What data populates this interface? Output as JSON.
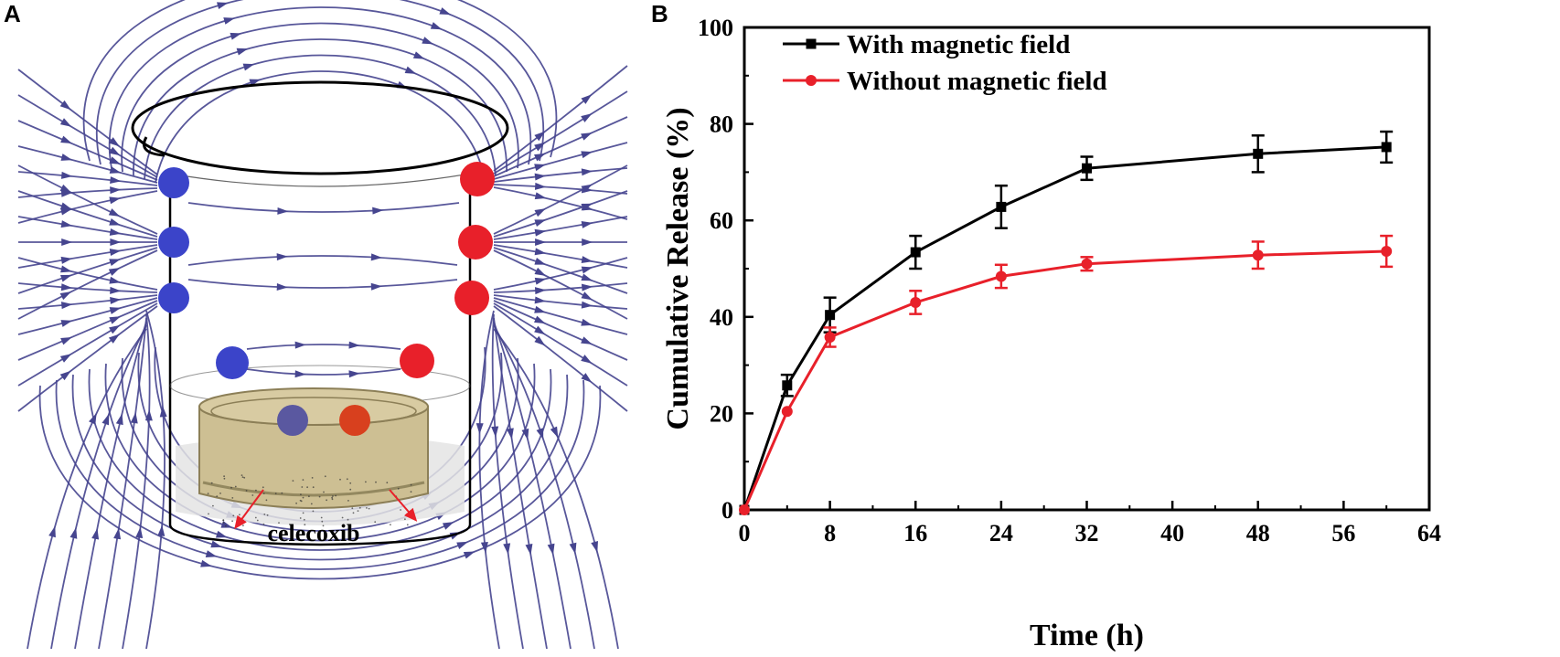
{
  "panel_a": {
    "letter": "A",
    "label": "celecoxib",
    "colors": {
      "field_line": "#46458f",
      "north_pole": "#3b44c9",
      "south_pole": "#e8202a",
      "sample": "#cdbf93"
    }
  },
  "panel_b": {
    "letter": "B"
  },
  "chart_data": {
    "type": "line",
    "xlabel": "Time (h)",
    "ylabel": "Cumulative Release (%)",
    "xlim": [
      0,
      64
    ],
    "ylim": [
      0,
      100
    ],
    "xticks": [
      0,
      8,
      16,
      24,
      32,
      40,
      48,
      56,
      64
    ],
    "yticks": [
      0,
      20,
      40,
      60,
      80,
      100
    ],
    "grid": false,
    "legend_position": "top-left",
    "series": [
      {
        "name": "With magnetic field",
        "color": "#000000",
        "marker": "square",
        "x": [
          0,
          4,
          8,
          16,
          24,
          32,
          48,
          60
        ],
        "y": [
          0,
          25.8,
          40.4,
          53.4,
          62.8,
          70.8,
          73.8,
          75.2
        ],
        "err": [
          0,
          2.2,
          3.6,
          3.4,
          4.4,
          2.4,
          3.8,
          3.2
        ]
      },
      {
        "name": "Without magnetic field",
        "color": "#e8202a",
        "marker": "circle",
        "x": [
          0,
          4,
          8,
          16,
          24,
          32,
          48,
          60
        ],
        "y": [
          0,
          20.4,
          35.8,
          43.0,
          48.4,
          51.0,
          52.8,
          53.6
        ],
        "err": [
          0,
          0,
          2.0,
          2.4,
          2.4,
          1.4,
          2.8,
          3.2
        ]
      }
    ]
  }
}
